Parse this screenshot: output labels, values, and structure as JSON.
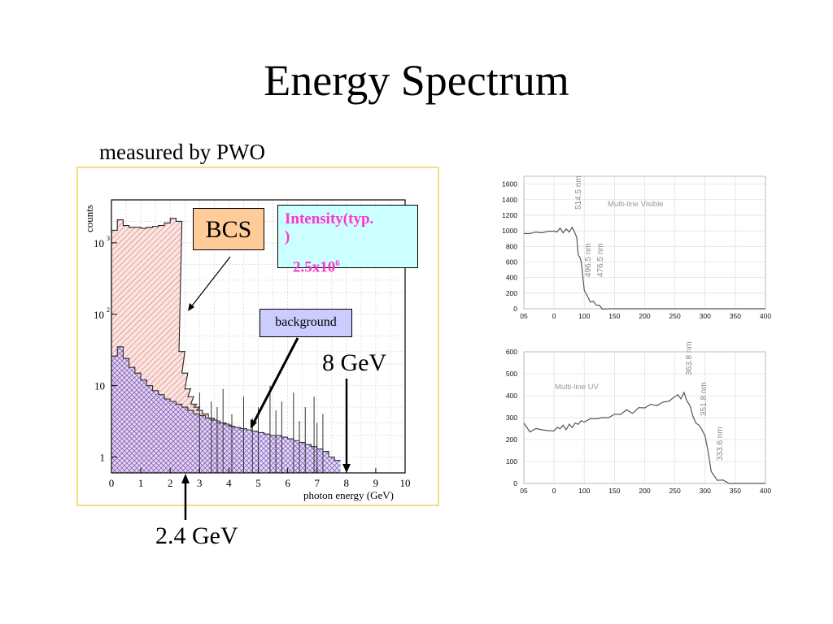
{
  "slide": {
    "title": "Energy Spectrum",
    "subtitle": "measured by PWO"
  },
  "annotations": {
    "bcs": "BCS",
    "intensity_line1": "Intensity(typ.",
    "intensity_line2": ")",
    "intensity_value": "2.5x10",
    "intensity_exp": "6",
    "background": "background",
    "energy_high": "8 GeV",
    "energy_low": "2.4 GeV"
  },
  "colors": {
    "bcs_box": "#ffcc99",
    "intensity_box": "#ccffff",
    "intensity_text": "#ff33cc",
    "background_box": "#ccccff",
    "bcs_hist": "#e05050",
    "background_hist": "#6060d0",
    "panel_border": "#f0e080"
  },
  "chart_data": [
    {
      "type": "area",
      "xlabel": "photon energy (GeV)",
      "ylabel": "counts",
      "xlim": [
        0,
        10
      ],
      "ylim_log": [
        0.6,
        4000
      ],
      "log_y": true,
      "grid": true,
      "x_ticks": [
        "0",
        "1",
        "2",
        "3",
        "4",
        "5",
        "6",
        "7",
        "8",
        "9",
        "10"
      ],
      "y_ticks": [
        {
          "value": 1,
          "label": "1"
        },
        {
          "value": 10,
          "label": "10"
        },
        {
          "value": 100,
          "label": "10",
          "exp": "2"
        },
        {
          "value": 1000,
          "label": "10",
          "exp": "3"
        }
      ],
      "series": [
        {
          "name": "BCS",
          "x": [
            0.1,
            0.3,
            0.5,
            0.7,
            0.9,
            1.1,
            1.3,
            1.5,
            1.7,
            1.9,
            2.1,
            2.3,
            2.4,
            2.5,
            2.6,
            2.7,
            2.8,
            2.9,
            3.0,
            3.2,
            3.4,
            3.6,
            3.8,
            4.0,
            4.2,
            4.4
          ],
          "y": [
            1500,
            2100,
            1750,
            1650,
            1650,
            1600,
            1650,
            1700,
            1750,
            1900,
            2200,
            2000,
            30,
            15,
            9,
            7,
            5.5,
            5,
            4.5,
            4,
            3.5,
            3.2,
            3,
            2.8,
            2.6,
            2.4
          ]
        },
        {
          "name": "background",
          "x": [
            0.1,
            0.3,
            0.5,
            0.7,
            0.9,
            1.1,
            1.3,
            1.5,
            1.7,
            1.9,
            2.1,
            2.3,
            2.5,
            2.7,
            2.9,
            3.1,
            3.3,
            3.5,
            3.7,
            3.9,
            4.1,
            4.3,
            4.5,
            4.7,
            4.9,
            5.1,
            5.3,
            5.5,
            5.7,
            5.9,
            6.1,
            6.3,
            6.5,
            6.7,
            6.9,
            7.1,
            7.3,
            7.5,
            7.7
          ],
          "y": [
            26,
            35,
            24,
            18,
            15,
            12,
            10,
            8.5,
            7.5,
            6.5,
            6,
            5.5,
            5,
            4.5,
            4,
            3.8,
            3.5,
            3.3,
            3,
            2.9,
            2.7,
            2.6,
            2.5,
            2.4,
            2.3,
            2.2,
            2.1,
            2,
            2,
            1.9,
            1.8,
            1.7,
            1.6,
            1.5,
            1.4,
            1.3,
            1.2,
            1,
            0.9
          ]
        }
      ]
    },
    {
      "type": "line",
      "annotation": "Multi-line Visible",
      "xlim": [
        -50,
        400
      ],
      "ylim": [
        0,
        1700
      ],
      "grid": true,
      "x_ticks": [
        "05",
        "0",
        "100",
        "150",
        "200",
        "250",
        "300",
        "350",
        "400"
      ],
      "y_ticks": [
        "0",
        "200",
        "400",
        "600",
        "800",
        "1000",
        "1200",
        "1400",
        "1600"
      ],
      "peak_labels": [
        "514.5 nm",
        "496.5 nm",
        "476.5 nm"
      ],
      "series": [
        {
          "x": [
            -50,
            -40,
            -30,
            -20,
            -10,
            0,
            10,
            20,
            30,
            40,
            50,
            60,
            70,
            75,
            80,
            85,
            90,
            95,
            100,
            105,
            110,
            115,
            120,
            125,
            130,
            140,
            150,
            200,
            250,
            300,
            350,
            400
          ],
          "y": [
            980,
            950,
            1000,
            960,
            1010,
            980,
            1000,
            1020,
            990,
            1010,
            1000,
            1030,
            980,
            900,
            700,
            650,
            620,
            400,
            250,
            150,
            100,
            80,
            60,
            30,
            10,
            0,
            0,
            0,
            0,
            0,
            0,
            0
          ]
        }
      ]
    },
    {
      "type": "line",
      "annotation": "Multi-line UV",
      "xlim": [
        -50,
        400
      ],
      "ylim": [
        0,
        600
      ],
      "grid": true,
      "x_ticks": [
        "05",
        "0",
        "100",
        "150",
        "200",
        "250",
        "300",
        "350",
        "400"
      ],
      "y_ticks": [
        "0",
        "100",
        "200",
        "300",
        "400",
        "500",
        "600"
      ],
      "peak_labels": [
        "363.8 nm",
        "351.8 nm",
        "333.6 nm"
      ],
      "series": [
        {
          "x": [
            -50,
            -45,
            -40,
            -30,
            -20,
            -10,
            0,
            10,
            20,
            30,
            40,
            50,
            60,
            70,
            80,
            90,
            100,
            110,
            120,
            130,
            140,
            150,
            160,
            170,
            180,
            190,
            200,
            210,
            220,
            230,
            240,
            250,
            255,
            260,
            265,
            270,
            275,
            280,
            285,
            290,
            295,
            300,
            305,
            310,
            320,
            330,
            340,
            350,
            400
          ],
          "y": [
            280,
            250,
            240,
            245,
            250,
            235,
            245,
            250,
            255,
            260,
            250,
            265,
            260,
            270,
            275,
            280,
            285,
            290,
            300,
            295,
            305,
            310,
            320,
            330,
            325,
            340,
            350,
            355,
            360,
            365,
            380,
            390,
            410,
            380,
            420,
            370,
            360,
            300,
            280,
            260,
            250,
            210,
            150,
            50,
            20,
            10,
            5,
            0,
            0
          ]
        }
      ]
    }
  ]
}
